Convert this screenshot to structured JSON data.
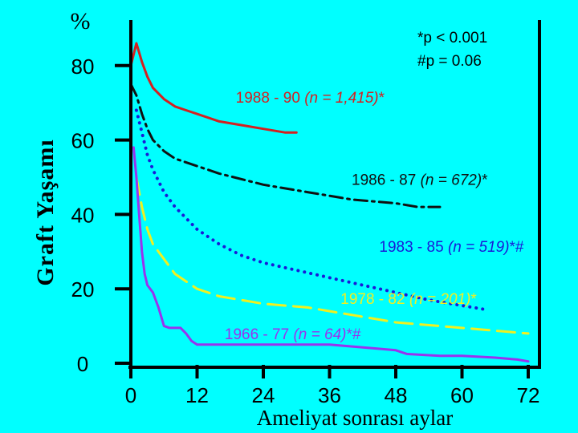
{
  "chart_data": {
    "type": "line",
    "unit_label": "%",
    "ylabel": "Graft   Yaşamı",
    "xlabel": "Ameliyat  sonrası  aylar",
    "xlim": [
      0,
      72
    ],
    "ylim": [
      0,
      90
    ],
    "xticks": [
      0,
      12,
      24,
      36,
      48,
      60,
      72
    ],
    "yticks": [
      0,
      20,
      40,
      60,
      80
    ],
    "annotations": [
      "*p < 0.001",
      "#p = 0.06"
    ],
    "series": [
      {
        "name": "1988 - 90",
        "n_text": "(n = 1,415)",
        "suffix": "*",
        "color": "#d42020",
        "style": "solid",
        "x": [
          0,
          1,
          2,
          3,
          4,
          6,
          8,
          10,
          12,
          16,
          20,
          24,
          28,
          30
        ],
        "y": [
          80,
          86,
          81,
          77,
          74,
          71,
          69,
          68,
          67,
          65,
          64,
          63,
          62,
          62
        ],
        "label_pos": [
          19,
          70
        ]
      },
      {
        "name": "1986 - 87",
        "n_text": "(n = 672)",
        "suffix": "*",
        "color": "#111111",
        "style": "dashdot",
        "x": [
          0,
          1,
          2,
          3,
          4,
          6,
          8,
          12,
          16,
          24,
          32,
          40,
          48,
          52,
          56
        ],
        "y": [
          75,
          72,
          67,
          63,
          60,
          57,
          55,
          53,
          51,
          48,
          46,
          44,
          43,
          42,
          42
        ],
        "label_pos": [
          40,
          48
        ]
      },
      {
        "name": "1983 - 85",
        "n_text": "(n = 519)",
        "suffix": "*#",
        "color": "#1a1ad8",
        "style": "dotted",
        "x": [
          1,
          2,
          3,
          4,
          6,
          8,
          12,
          16,
          20,
          24,
          30,
          36,
          42,
          48,
          54,
          60,
          64
        ],
        "y": [
          68,
          62,
          56,
          52,
          46,
          42,
          36,
          32,
          29,
          27,
          25,
          23,
          21,
          19,
          17,
          15.5,
          14.5
        ],
        "label_pos": [
          45,
          30
        ]
      },
      {
        "name": "1978 - 82",
        "n_text": "(n = 201)",
        "suffix": "*",
        "color": "#f0f020",
        "style": "dashed",
        "x": [
          1,
          2,
          3,
          4,
          6,
          8,
          12,
          16,
          20,
          24,
          32,
          40,
          48,
          56,
          64,
          72
        ],
        "y": [
          50,
          42,
          36,
          32,
          28,
          24,
          20,
          18,
          17,
          16,
          15,
          13,
          11,
          10,
          9,
          8
        ],
        "label_pos": [
          38,
          16
        ]
      },
      {
        "name": "1966 - 77",
        "n_text": "(n = 64)",
        "suffix": "*#",
        "color": "#9933ee",
        "style": "solid",
        "x": [
          0.5,
          1,
          1.5,
          2,
          2.5,
          3,
          4,
          5,
          6,
          7,
          8,
          9,
          10,
          11,
          12,
          24,
          36,
          44,
          48,
          50,
          56,
          60,
          66,
          70,
          72
        ],
        "y": [
          58,
          50,
          40,
          30,
          24,
          21,
          19,
          15,
          10,
          9.5,
          9.5,
          9.5,
          8,
          6,
          5,
          5,
          5,
          4,
          3.5,
          2.5,
          2,
          2,
          1.5,
          1,
          0.5
        ],
        "label_pos": [
          17,
          6.5
        ]
      }
    ]
  }
}
